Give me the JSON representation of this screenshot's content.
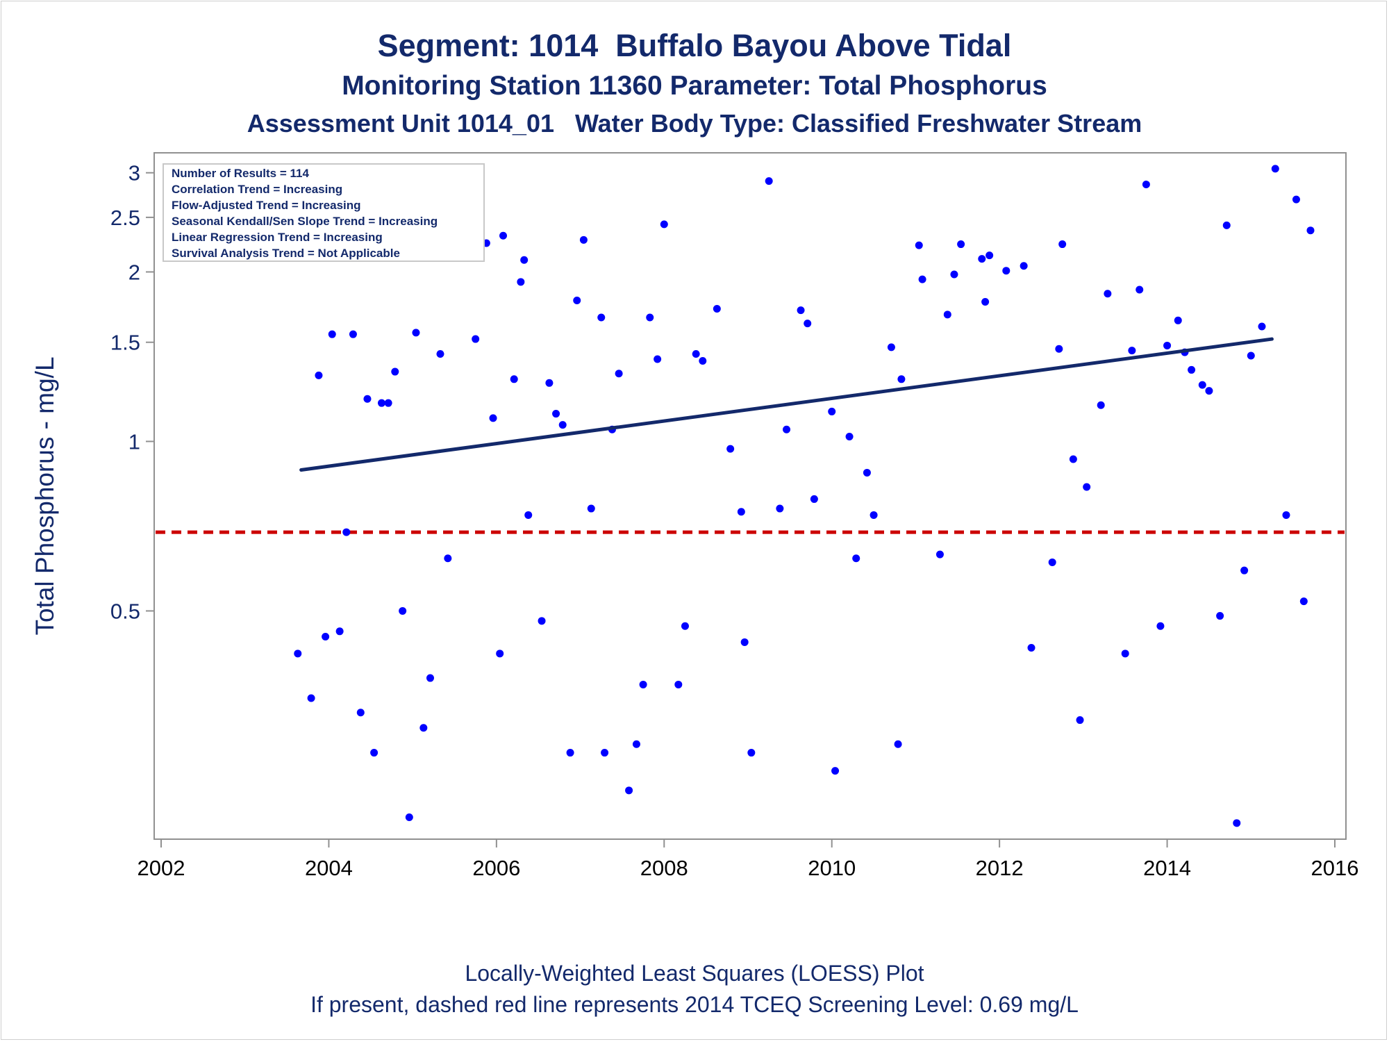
{
  "title": "Segment: 1014  Buffalo Bayou Above Tidal",
  "subtitle": "Monitoring Station 11360 Parameter: Total Phosphorus",
  "subtitle2": "Assessment Unit 1014_01   Water Body Type: Classified Freshwater Stream",
  "footnote1": "Locally-Weighted Least Squares (LOESS) Plot",
  "footnote2": "If present, dashed red line represents 2014 TCEQ Screening Level: 0.69 mg/L",
  "stats_box": [
    "Number of Results = 114",
    "Correlation Trend = Increasing",
    "Flow-Adjusted Trend = Increasing",
    "Seasonal Kendall/Sen Slope Trend = Increasing",
    "Linear Regression Trend = Increasing",
    "Survival Analysis Trend = Not Applicable"
  ],
  "colors": {
    "points": "#0000ff",
    "trend": "#13296b",
    "screening": "#cc0000",
    "axis": "#13296b"
  },
  "chart_data": {
    "type": "scatter",
    "ylabel": "Total Phosphorus - mg/L",
    "yscale": "log",
    "xlim": [
      2002,
      2016
    ],
    "ylim": [
      0.2,
      3.2
    ],
    "xticks": [
      "2002",
      "2004",
      "2006",
      "2008",
      "2010",
      "2012",
      "2014",
      "2016"
    ],
    "yticks": [
      {
        "label": "0.5",
        "value": 0.5
      },
      {
        "label": "1",
        "value": 1
      },
      {
        "label": "1.5",
        "value": 1.5
      },
      {
        "label": "2",
        "value": 2
      },
      {
        "label": "2.5",
        "value": 2.5
      },
      {
        "label": "3",
        "value": 3
      }
    ],
    "screening_level": 0.69,
    "trend_line": {
      "x": [
        2003.67,
        2015.25
      ],
      "y": [
        0.89,
        1.52
      ]
    },
    "points": [
      {
        "x": 2003.63,
        "y": 0.42
      },
      {
        "x": 2003.79,
        "y": 0.35
      },
      {
        "x": 2003.88,
        "y": 1.31
      },
      {
        "x": 2003.96,
        "y": 0.45
      },
      {
        "x": 2004.04,
        "y": 1.55
      },
      {
        "x": 2004.13,
        "y": 0.46
      },
      {
        "x": 2004.21,
        "y": 0.69
      },
      {
        "x": 2004.29,
        "y": 1.55
      },
      {
        "x": 2004.38,
        "y": 0.33
      },
      {
        "x": 2004.46,
        "y": 1.19
      },
      {
        "x": 2004.54,
        "y": 0.28
      },
      {
        "x": 2004.63,
        "y": 1.17
      },
      {
        "x": 2004.71,
        "y": 1.17
      },
      {
        "x": 2004.79,
        "y": 1.33
      },
      {
        "x": 2004.88,
        "y": 0.5
      },
      {
        "x": 2004.96,
        "y": 0.215
      },
      {
        "x": 2005.04,
        "y": 1.56
      },
      {
        "x": 2005.13,
        "y": 0.31
      },
      {
        "x": 2005.21,
        "y": 0.38
      },
      {
        "x": 2005.33,
        "y": 1.43
      },
      {
        "x": 2005.42,
        "y": 0.62
      },
      {
        "x": 2005.75,
        "y": 1.52
      },
      {
        "x": 2005.88,
        "y": 2.25
      },
      {
        "x": 2005.96,
        "y": 1.1
      },
      {
        "x": 2006.04,
        "y": 0.42
      },
      {
        "x": 2006.08,
        "y": 2.32
      },
      {
        "x": 2006.21,
        "y": 1.29
      },
      {
        "x": 2006.29,
        "y": 1.92
      },
      {
        "x": 2006.33,
        "y": 2.1
      },
      {
        "x": 2006.38,
        "y": 0.74
      },
      {
        "x": 2006.54,
        "y": 0.48
      },
      {
        "x": 2006.63,
        "y": 1.27
      },
      {
        "x": 2006.71,
        "y": 1.12
      },
      {
        "x": 2006.79,
        "y": 1.07
      },
      {
        "x": 2006.88,
        "y": 0.28
      },
      {
        "x": 2006.96,
        "y": 1.78
      },
      {
        "x": 2007.04,
        "y": 2.28
      },
      {
        "x": 2007.13,
        "y": 0.76
      },
      {
        "x": 2007.25,
        "y": 1.66
      },
      {
        "x": 2007.29,
        "y": 0.28
      },
      {
        "x": 2007.38,
        "y": 1.05
      },
      {
        "x": 2007.46,
        "y": 1.32
      },
      {
        "x": 2007.58,
        "y": 0.24
      },
      {
        "x": 2007.67,
        "y": 0.29
      },
      {
        "x": 2007.75,
        "y": 0.37
      },
      {
        "x": 2007.83,
        "y": 1.66
      },
      {
        "x": 2007.92,
        "y": 1.4
      },
      {
        "x": 2008.0,
        "y": 2.43
      },
      {
        "x": 2008.17,
        "y": 0.37
      },
      {
        "x": 2008.25,
        "y": 0.47
      },
      {
        "x": 2008.38,
        "y": 1.43
      },
      {
        "x": 2008.46,
        "y": 1.39
      },
      {
        "x": 2008.63,
        "y": 1.72
      },
      {
        "x": 2008.79,
        "y": 0.97
      },
      {
        "x": 2008.92,
        "y": 0.75
      },
      {
        "x": 2008.96,
        "y": 0.44
      },
      {
        "x": 2009.04,
        "y": 0.28
      },
      {
        "x": 2009.25,
        "y": 2.9
      },
      {
        "x": 2009.38,
        "y": 0.76
      },
      {
        "x": 2009.46,
        "y": 1.05
      },
      {
        "x": 2009.63,
        "y": 1.71
      },
      {
        "x": 2009.71,
        "y": 1.62
      },
      {
        "x": 2009.79,
        "y": 0.79
      },
      {
        "x": 2010.0,
        "y": 1.13
      },
      {
        "x": 2010.04,
        "y": 0.26
      },
      {
        "x": 2010.21,
        "y": 1.02
      },
      {
        "x": 2010.29,
        "y": 0.62
      },
      {
        "x": 2010.42,
        "y": 0.88
      },
      {
        "x": 2010.5,
        "y": 0.74
      },
      {
        "x": 2010.71,
        "y": 1.47
      },
      {
        "x": 2010.79,
        "y": 0.29
      },
      {
        "x": 2010.83,
        "y": 1.29
      },
      {
        "x": 2011.04,
        "y": 2.23
      },
      {
        "x": 2011.08,
        "y": 1.94
      },
      {
        "x": 2011.29,
        "y": 0.63
      },
      {
        "x": 2011.38,
        "y": 1.68
      },
      {
        "x": 2011.46,
        "y": 1.98
      },
      {
        "x": 2011.54,
        "y": 2.24
      },
      {
        "x": 2011.79,
        "y": 2.11
      },
      {
        "x": 2011.83,
        "y": 1.77
      },
      {
        "x": 2011.88,
        "y": 2.14
      },
      {
        "x": 2012.08,
        "y": 2.01
      },
      {
        "x": 2012.29,
        "y": 2.05
      },
      {
        "x": 2012.38,
        "y": 0.43
      },
      {
        "x": 2012.63,
        "y": 0.61
      },
      {
        "x": 2012.71,
        "y": 1.46
      },
      {
        "x": 2012.75,
        "y": 2.24
      },
      {
        "x": 2012.88,
        "y": 0.93
      },
      {
        "x": 2012.96,
        "y": 0.32
      },
      {
        "x": 2013.04,
        "y": 0.83
      },
      {
        "x": 2013.21,
        "y": 1.16
      },
      {
        "x": 2013.29,
        "y": 1.83
      },
      {
        "x": 2013.5,
        "y": 0.42
      },
      {
        "x": 2013.58,
        "y": 1.45
      },
      {
        "x": 2013.67,
        "y": 1.86
      },
      {
        "x": 2013.75,
        "y": 2.86
      },
      {
        "x": 2013.92,
        "y": 0.47
      },
      {
        "x": 2014.0,
        "y": 1.48
      },
      {
        "x": 2014.13,
        "y": 1.64
      },
      {
        "x": 2014.21,
        "y": 1.44
      },
      {
        "x": 2014.29,
        "y": 1.34
      },
      {
        "x": 2014.42,
        "y": 1.26
      },
      {
        "x": 2014.5,
        "y": 1.23
      },
      {
        "x": 2014.63,
        "y": 0.49
      },
      {
        "x": 2014.71,
        "y": 2.42
      },
      {
        "x": 2014.83,
        "y": 0.21
      },
      {
        "x": 2014.92,
        "y": 0.59
      },
      {
        "x": 2015.0,
        "y": 1.42
      },
      {
        "x": 2015.13,
        "y": 1.6
      },
      {
        "x": 2015.29,
        "y": 3.05
      },
      {
        "x": 2015.42,
        "y": 0.74
      },
      {
        "x": 2015.54,
        "y": 2.69
      },
      {
        "x": 2015.63,
        "y": 0.52
      },
      {
        "x": 2015.71,
        "y": 2.37
      }
    ]
  }
}
